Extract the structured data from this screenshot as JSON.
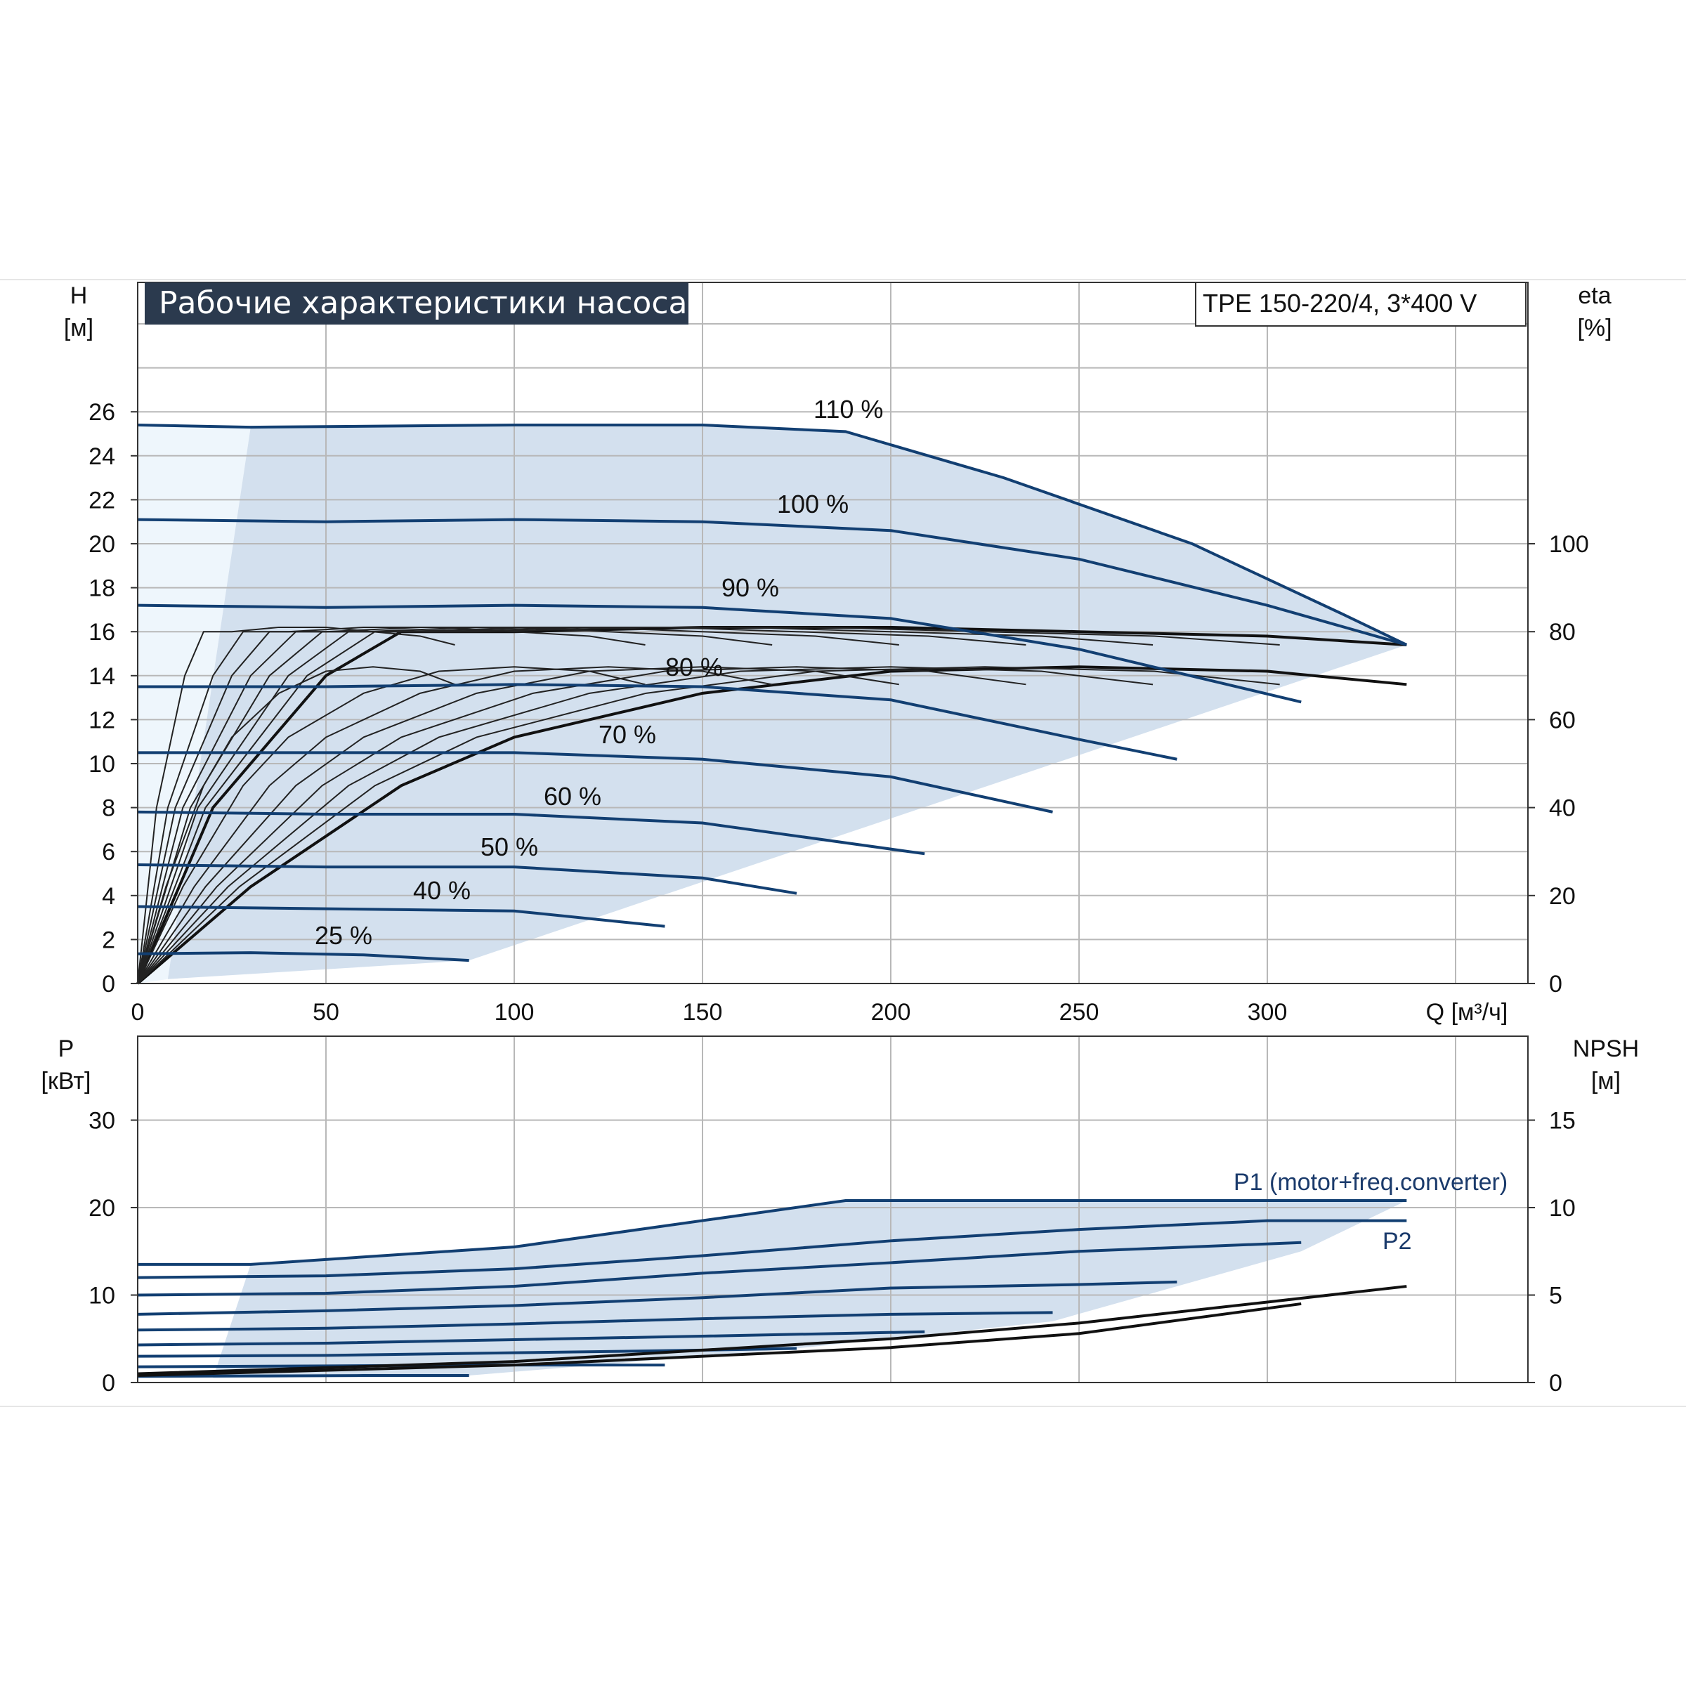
{
  "title": "Рабочие характеристики насоса",
  "model": "TPE 150-220/4, 3*400 V",
  "colors": {
    "curve_blue": "#123f72",
    "area_fill": "#d3e0ee",
    "area_light": "#eef6fc",
    "title_bg": "#2b3a4e",
    "grid": "#b8b8b8"
  },
  "chart_data": [
    {
      "type": "line",
      "title": "Рабочие характеристики насоса",
      "xlabel": "Q [м³/ч]",
      "ylabel_left": [
        "H",
        "[м]"
      ],
      "ylabel_right": [
        "eta",
        "[%]"
      ],
      "xlim": [
        0,
        370
      ],
      "ylim_left": [
        0,
        32
      ],
      "ylim_right": [
        0,
        160
      ],
      "x_ticks": [
        "0",
        "50",
        "100",
        "150",
        "200",
        "250",
        "300"
      ],
      "y_ticks_left": [
        "0",
        "2",
        "4",
        "6",
        "8",
        "10",
        "12",
        "14",
        "16",
        "18",
        "20",
        "22",
        "24",
        "26"
      ],
      "y_ticks_right": [
        "0",
        "20",
        "40",
        "60",
        "80",
        "100"
      ],
      "grid": true,
      "head_series": [
        {
          "name": "110 %",
          "x": [
            0,
            30,
            100,
            150,
            188,
            230,
            280,
            320,
            337
          ],
          "y": [
            25.4,
            25.3,
            25.4,
            25.4,
            25.1,
            23.0,
            20.0,
            16.8,
            15.4
          ]
        },
        {
          "name": "100 %",
          "x": [
            0,
            50,
            100,
            150,
            200,
            250,
            300,
            337
          ],
          "y": [
            21.1,
            21.0,
            21.1,
            21.0,
            20.6,
            19.3,
            17.2,
            15.4
          ]
        },
        {
          "name": "90 %",
          "x": [
            0,
            50,
            100,
            150,
            200,
            250,
            309
          ],
          "y": [
            17.2,
            17.1,
            17.2,
            17.1,
            16.6,
            15.2,
            12.8
          ]
        },
        {
          "name": "80 %",
          "x": [
            0,
            50,
            100,
            150,
            200,
            250,
            276
          ],
          "y": [
            13.5,
            13.5,
            13.6,
            13.5,
            12.9,
            11.1,
            10.2
          ]
        },
        {
          "name": "70 %",
          "x": [
            0,
            50,
            100,
            150,
            200,
            243
          ],
          "y": [
            10.5,
            10.5,
            10.5,
            10.2,
            9.4,
            7.8
          ]
        },
        {
          "name": "60 %",
          "x": [
            0,
            50,
            100,
            150,
            209
          ],
          "y": [
            7.8,
            7.7,
            7.7,
            7.3,
            5.9
          ]
        },
        {
          "name": "50 %",
          "x": [
            0,
            50,
            100,
            150,
            175
          ],
          "y": [
            5.4,
            5.3,
            5.3,
            4.8,
            4.1
          ]
        },
        {
          "name": "40 %",
          "x": [
            0,
            50,
            100,
            140
          ],
          "y": [
            3.5,
            3.4,
            3.3,
            2.6
          ]
        },
        {
          "name": "25 %",
          "x": [
            0,
            30,
            60,
            88
          ],
          "y": [
            1.35,
            1.4,
            1.3,
            1.05
          ]
        }
      ],
      "efficiency_series": [
        {
          "x": [
            0,
            30,
            70,
            100,
            150,
            200,
            250,
            300,
            337
          ],
          "y": [
            0,
            22,
            45,
            56,
            66,
            71,
            72,
            71,
            68
          ]
        },
        {
          "x": [
            0,
            20,
            50,
            70,
            100,
            150,
            200,
            250,
            300,
            337
          ],
          "y": [
            0,
            40,
            70,
            80,
            80,
            81,
            81,
            80,
            79,
            77
          ]
        }
      ],
      "annotations": [
        "110 %",
        "100 %",
        "90 %",
        "80 %",
        "70 %",
        "60 %",
        "50 %",
        "40 %",
        "25 %"
      ]
    },
    {
      "type": "line",
      "xlabel": "",
      "ylabel_left": [
        "P",
        "[кВт]"
      ],
      "ylabel_right": [
        "NPSH",
        "[м]"
      ],
      "xlim": [
        0,
        370
      ],
      "ylim_left": [
        0,
        40
      ],
      "ylim_right": [
        0,
        20
      ],
      "y_ticks_left": [
        "0",
        "10",
        "20",
        "30"
      ],
      "y_ticks_right": [
        "0",
        "5",
        "10",
        "15"
      ],
      "grid": true,
      "power_series": [
        {
          "x": [
            0,
            30,
            100,
            188,
            250,
            337
          ],
          "y": [
            13.5,
            13.5,
            15.5,
            20.8,
            20.8,
            20.8
          ]
        },
        {
          "x": [
            0,
            50,
            100,
            150,
            200,
            250,
            300,
            337
          ],
          "y": [
            12.0,
            12.2,
            13.0,
            14.5,
            16.2,
            17.5,
            18.5,
            18.5
          ]
        },
        {
          "x": [
            0,
            50,
            100,
            150,
            200,
            250,
            309
          ],
          "y": [
            10.0,
            10.2,
            11.0,
            12.5,
            13.7,
            15.0,
            16.0
          ]
        },
        {
          "x": [
            0,
            50,
            100,
            150,
            200,
            250,
            276
          ],
          "y": [
            7.8,
            8.2,
            8.8,
            9.7,
            10.8,
            11.2,
            11.5
          ]
        },
        {
          "x": [
            0,
            50,
            100,
            150,
            200,
            243
          ],
          "y": [
            6.0,
            6.2,
            6.7,
            7.3,
            7.8,
            8.0
          ]
        },
        {
          "x": [
            0,
            50,
            100,
            150,
            209
          ],
          "y": [
            4.3,
            4.5,
            4.9,
            5.3,
            5.8
          ]
        },
        {
          "x": [
            0,
            50,
            100,
            150,
            175
          ],
          "y": [
            3.0,
            3.1,
            3.4,
            3.7,
            3.9
          ]
        },
        {
          "x": [
            0,
            50,
            100,
            140
          ],
          "y": [
            1.8,
            1.9,
            2.0,
            2.0
          ]
        },
        {
          "x": [
            0,
            30,
            60,
            88
          ],
          "y": [
            0.7,
            0.75,
            0.8,
            0.8
          ]
        }
      ],
      "npsh_series": [
        {
          "x": [
            0,
            100,
            200,
            250,
            300,
            337
          ],
          "y": [
            0.5,
            1.2,
            2.5,
            3.4,
            4.6,
            5.5
          ]
        },
        {
          "x": [
            0,
            100,
            200,
            250,
            309
          ],
          "y": [
            0.4,
            1.0,
            2.0,
            2.8,
            4.5
          ]
        }
      ],
      "legend": [
        "P1 (motor+freq.converter)",
        "P2"
      ]
    }
  ]
}
